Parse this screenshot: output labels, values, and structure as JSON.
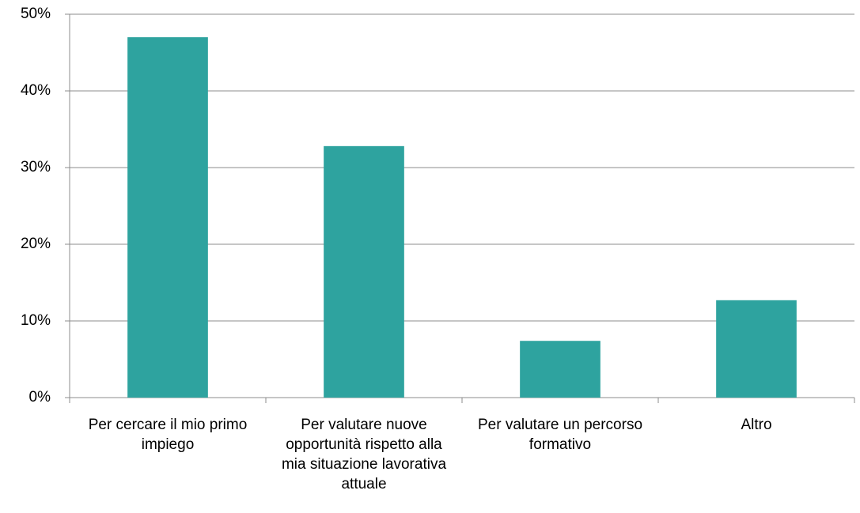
{
  "chart_data": {
    "type": "bar",
    "categories": [
      "Per cercare il mio primo impiego",
      "Per valutare nuove opportunità rispetto alla mia situazione lavorativa attuale",
      "Per valutare un percorso formativo",
      "Altro"
    ],
    "values": [
      47,
      32.8,
      7.4,
      12.7
    ],
    "color": "#2ea39f",
    "ylim": [
      0,
      50
    ],
    "yticks": [
      {
        "value": 0,
        "label": "0%"
      },
      {
        "value": 10,
        "label": "10%"
      },
      {
        "value": 20,
        "label": "20%"
      },
      {
        "value": 30,
        "label": "30%"
      },
      {
        "value": 40,
        "label": "40%"
      },
      {
        "value": 50,
        "label": "50%"
      }
    ],
    "grid": true
  }
}
